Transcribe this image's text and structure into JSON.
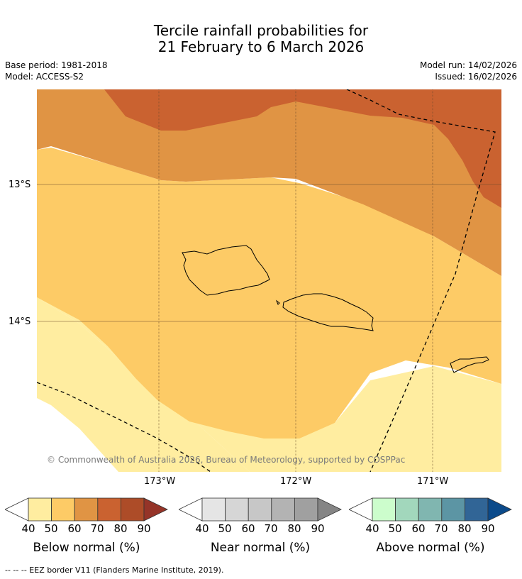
{
  "title": {
    "line1": "Tercile rainfall probabilities for",
    "line2": "21 February to 6 March 2026"
  },
  "meta": {
    "base_period": "Base period: 1981-2018",
    "model": "Model: ACCESS-S2",
    "model_run": "Model run: 14/02/2026",
    "issued": "Issued: 16/02/2026"
  },
  "map": {
    "copyright": "© Commonwealth of Australia 2026, Bureau of Meteorology, supported by COSPPac",
    "lat_labels": [
      "13°S",
      "14°S"
    ],
    "lon_labels": [
      "173°W",
      "172°W",
      "171°W"
    ]
  },
  "legends": [
    {
      "title": "Below normal (%)",
      "ticks": [
        "40",
        "50",
        "60",
        "70",
        "80",
        "90"
      ],
      "colors": [
        "#ffeda0",
        "#fdcb66",
        "#e09444",
        "#ca6230",
        "#ad4c28",
        "#953428"
      ]
    },
    {
      "title": "Near normal (%)",
      "ticks": [
        "40",
        "50",
        "60",
        "70",
        "80",
        "90"
      ],
      "colors": [
        "#e5e5e5",
        "#d6d6d6",
        "#c7c7c7",
        "#b3b3b3",
        "#a0a0a0",
        "#858585"
      ]
    },
    {
      "title": "Above normal (%)",
      "ticks": [
        "40",
        "50",
        "60",
        "70",
        "80",
        "90"
      ],
      "colors": [
        "#ccfdcc",
        "#a2d7bc",
        "#80b6b0",
        "#5c95a4",
        "#316596",
        "#0b4a8a"
      ]
    }
  ],
  "footer": "--  --  -- EEZ border V11 (Flanders Marine Institute, 2019)."
}
